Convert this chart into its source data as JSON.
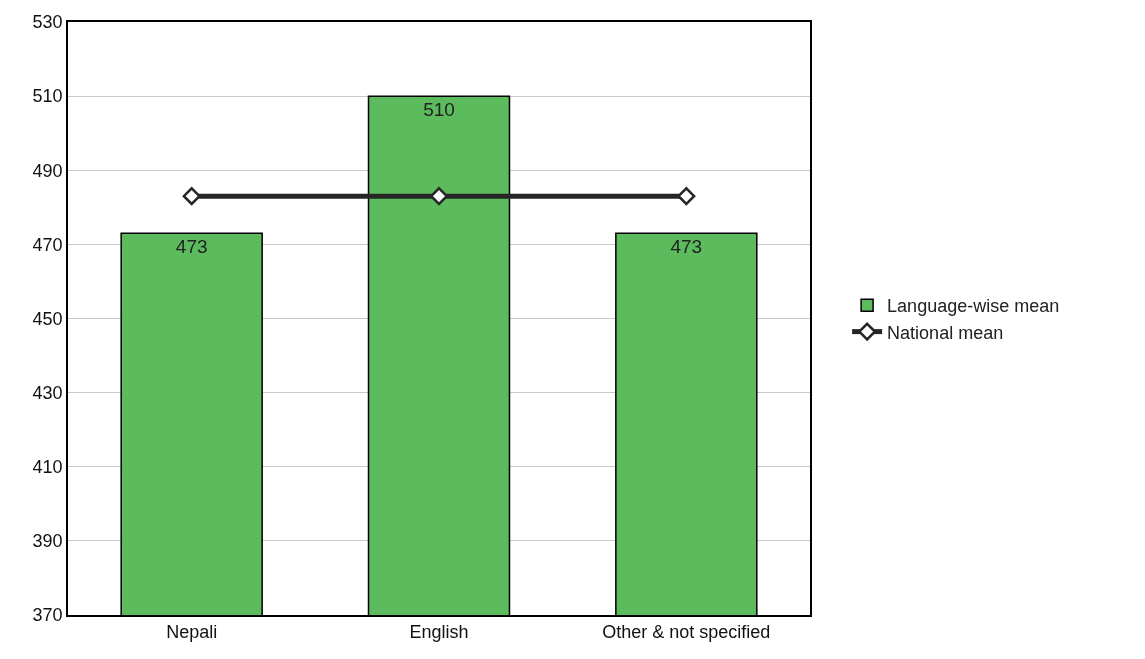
{
  "chart_data": {
    "type": "bar",
    "categories": [
      "Nepali",
      "English",
      "Other & not specified"
    ],
    "series": [
      {
        "name": "Language-wise mean",
        "color": "#5cbb5c",
        "values": [
          473,
          510,
          473
        ],
        "value_labels": [
          "473",
          "510",
          "473"
        ]
      },
      {
        "name": "National mean",
        "type": "line",
        "color": "#262626",
        "values": [
          483,
          483,
          483
        ],
        "marker": "diamond"
      }
    ],
    "ylim": [
      370,
      530
    ],
    "yticks": [
      370,
      390,
      410,
      430,
      450,
      470,
      490,
      510,
      530
    ],
    "grid": "y",
    "legend": "right"
  }
}
